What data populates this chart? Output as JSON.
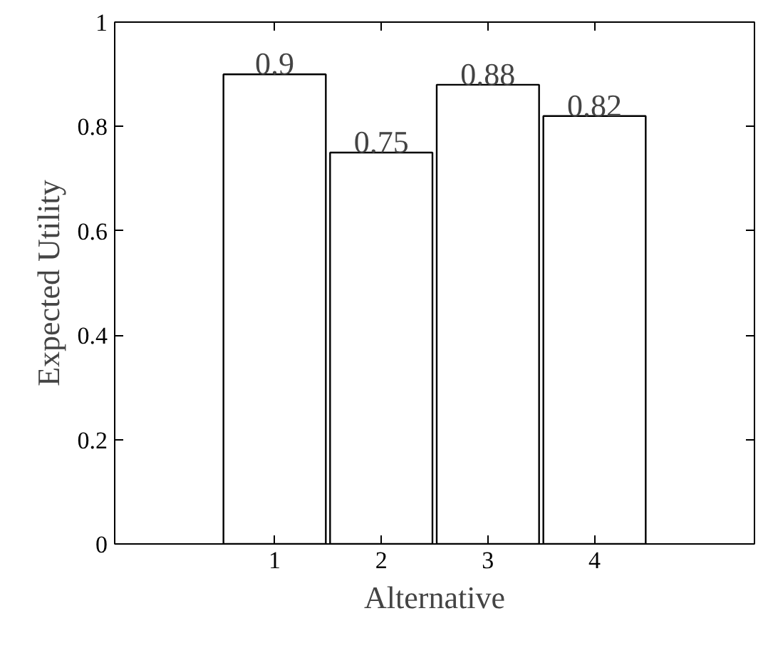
{
  "chart_data": {
    "type": "bar",
    "xlabel": "Alternative",
    "ylabel": "Expected Utility",
    "categories": [
      "1",
      "2",
      "3",
      "4"
    ],
    "values": [
      0.9,
      0.75,
      0.88,
      0.82
    ],
    "color": "#ffffff",
    "ylim": [
      0,
      1
    ],
    "yticks": [
      0,
      0.2,
      0.4,
      0.6,
      0.8,
      1
    ],
    "data_labels": true,
    "grid": false
  }
}
